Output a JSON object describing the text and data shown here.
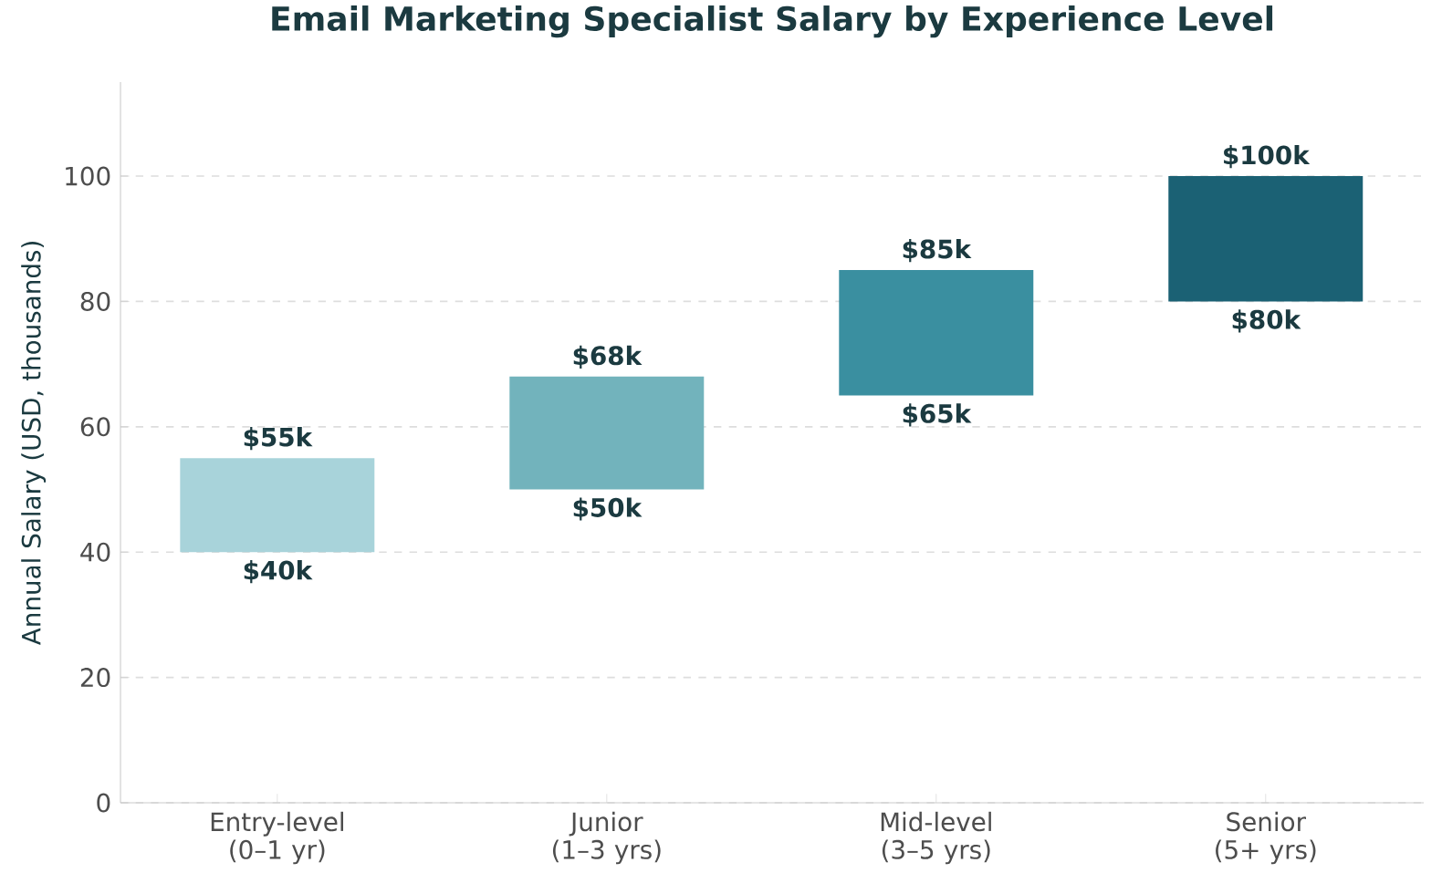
{
  "chart_data": {
    "type": "bar",
    "title": "Email Marketing Specialist Salary by Experience Level",
    "ylabel": "Annual Salary (USD, thousands)",
    "categories": [
      "Entry-level (0–1 yr)",
      "Junior (1–3 yrs)",
      "Mid-level (3–5 yrs)",
      "Senior (5+ yrs)"
    ],
    "base": [
      40,
      50,
      65,
      80
    ],
    "values": [
      15,
      18,
      20,
      20
    ],
    "colors": [
      "#a8d3da",
      "#72b3bc",
      "#3a8fa0",
      "#1b6174"
    ],
    "ylim": [
      0,
      115
    ],
    "yticks": [
      0,
      20,
      40,
      60,
      80,
      100
    ],
    "grid": "y",
    "annotations": [
      {
        "text": "$55k",
        "x": "Entry-level (0–1 yr)",
        "y": 55
      },
      {
        "text": "$40k",
        "x": "Entry-level (0–1 yr)",
        "y": 40
      },
      {
        "text": "$68k",
        "x": "Junior (1–3 yrs)",
        "y": 68
      },
      {
        "text": "$50k",
        "x": "Junior (1–3 yrs)",
        "y": 50
      },
      {
        "text": "$85k",
        "x": "Mid-level (3–5 yrs)",
        "y": 85
      },
      {
        "text": "$65k",
        "x": "Mid-level (3–5 yrs)",
        "y": 65
      },
      {
        "text": "$100k",
        "x": "Senior (5+ yrs)",
        "y": 100
      },
      {
        "text": "$80k",
        "x": "Senior (5+ yrs)",
        "y": 80
      }
    ]
  }
}
